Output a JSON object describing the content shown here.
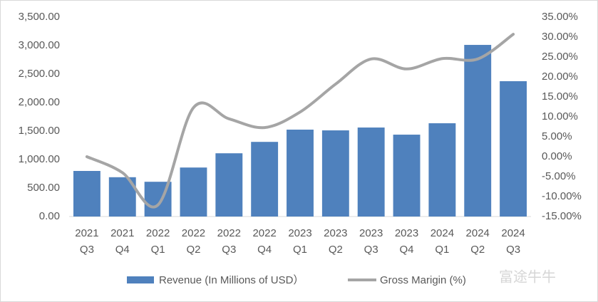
{
  "chart_data": {
    "type": "bar-line",
    "categories": [
      [
        "2021",
        "Q3"
      ],
      [
        "2021",
        "Q4"
      ],
      [
        "2022",
        "Q1"
      ],
      [
        "2022",
        "Q2"
      ],
      [
        "2022",
        "Q3"
      ],
      [
        "2022",
        "Q4"
      ],
      [
        "2023",
        "Q1"
      ],
      [
        "2023",
        "Q2"
      ],
      [
        "2023",
        "Q3"
      ],
      [
        "2023",
        "Q4"
      ],
      [
        "2024",
        "Q1"
      ],
      [
        "2024",
        "Q2"
      ],
      [
        "2024",
        "Q3"
      ]
    ],
    "series": [
      {
        "name": "Revenue (In Millions of USD）",
        "type": "bar",
        "color": "#4f81bd",
        "values": [
          800,
          690,
          610,
          860,
          1110,
          1310,
          1525,
          1512,
          1562,
          1437,
          1637,
          3012,
          2375
        ]
      },
      {
        "name": "Gross Marigin (%)",
        "type": "line",
        "axis": "y2",
        "color": "#a5a5a5",
        "values": [
          0,
          -4,
          -12.1,
          12.3,
          9.5,
          7.3,
          11.2,
          18.2,
          24.5,
          22,
          24.6,
          24.5,
          30.7
        ]
      }
    ],
    "ylim": [
      0,
      3500
    ],
    "yticks": [
      {
        "value": 0,
        "label": "0.00"
      },
      {
        "value": 500,
        "label": "500.00"
      },
      {
        "value": 1000,
        "label": "1,000.00"
      },
      {
        "value": 1500,
        "label": "1,500.00"
      },
      {
        "value": 2000,
        "label": "2,000.00"
      },
      {
        "value": 2500,
        "label": "2,500.00"
      },
      {
        "value": 3000,
        "label": "3,000.00"
      },
      {
        "value": 3500,
        "label": "3,500.00"
      }
    ],
    "y2lim": [
      -15,
      35
    ],
    "y2ticks": [
      {
        "value": -15,
        "label": "-15.00%"
      },
      {
        "value": -10,
        "label": "-10.00%"
      },
      {
        "value": -5,
        "label": "-5.00%"
      },
      {
        "value": 0,
        "label": "0.00%"
      },
      {
        "value": 5,
        "label": "5.00%"
      },
      {
        "value": 10,
        "label": "10.00%"
      },
      {
        "value": 15,
        "label": "15.00%"
      },
      {
        "value": 20,
        "label": "20.00%"
      },
      {
        "value": 25,
        "label": "25.00%"
      },
      {
        "value": 30,
        "label": "30.00%"
      },
      {
        "value": 35,
        "label": "35.00%"
      }
    ],
    "legend": "bottom",
    "watermark": "富途牛牛"
  }
}
